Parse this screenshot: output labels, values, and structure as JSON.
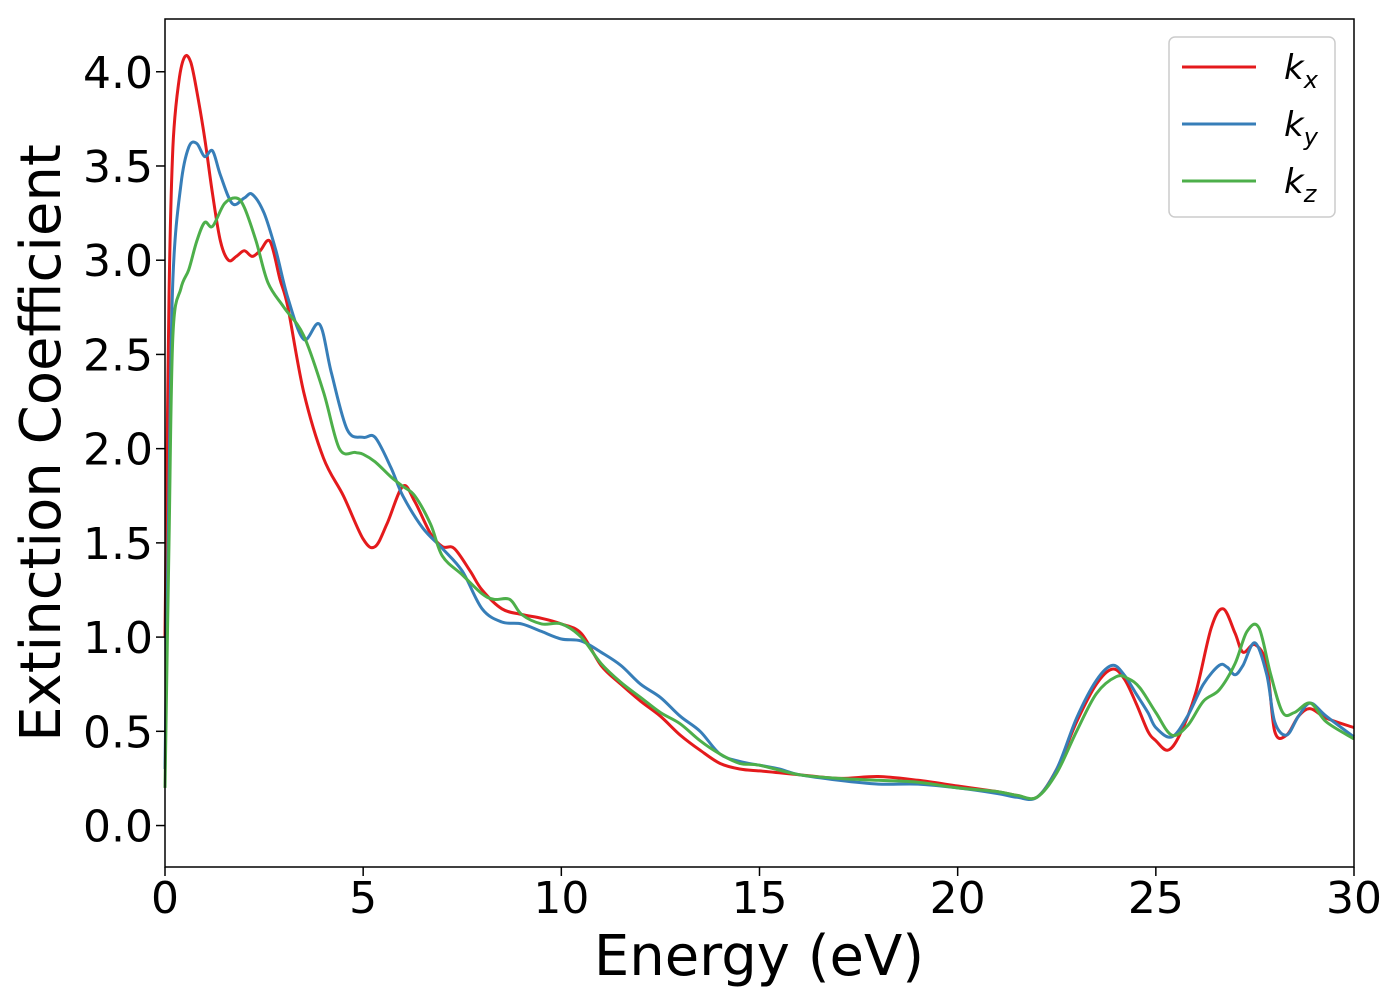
{
  "chart_data": {
    "type": "line",
    "title": "",
    "xlabel": "Energy (eV)",
    "ylabel": "Extinction Coefficient",
    "xlim": [
      0,
      30
    ],
    "ylim": [
      -0.22,
      4.28
    ],
    "xticks": [
      "0",
      "5",
      "10",
      "15",
      "20",
      "25",
      "30"
    ],
    "yticks": [
      "0.0",
      "0.5",
      "1.0",
      "1.5",
      "2.0",
      "2.5",
      "3.0",
      "3.5",
      "4.0"
    ],
    "xtick_values": [
      0,
      5,
      10,
      15,
      20,
      25,
      30
    ],
    "ytick_values": [
      0.0,
      0.5,
      1.0,
      1.5,
      2.0,
      2.5,
      3.0,
      3.5,
      4.0
    ],
    "grid": false,
    "legend_position": "top-right",
    "series": [
      {
        "name": "k",
        "subscript": "x",
        "color": "#e41a1c",
        "x": [
          0,
          0.1,
          0.2,
          0.35,
          0.5,
          0.65,
          0.8,
          1.0,
          1.2,
          1.4,
          1.6,
          1.8,
          2.0,
          2.2,
          2.4,
          2.65,
          2.9,
          3.1,
          3.5,
          4.0,
          4.5,
          5.0,
          5.3,
          5.6,
          6.0,
          6.3,
          6.7,
          7.0,
          7.3,
          7.7,
          8.0,
          8.5,
          9.0,
          9.5,
          10.0,
          10.5,
          11.0,
          11.5,
          12.0,
          12.5,
          13.0,
          13.5,
          14.0,
          14.5,
          15.0,
          15.5,
          16.0,
          17.0,
          18.0,
          19.0,
          20.0,
          21.0,
          21.5,
          22.0,
          22.5,
          23.0,
          23.5,
          23.9,
          24.2,
          24.5,
          24.8,
          25.0,
          25.3,
          25.6,
          26.0,
          26.4,
          26.7,
          27.0,
          27.2,
          27.5,
          27.8,
          28.0,
          28.3,
          28.6,
          28.9,
          29.3,
          30.0
        ],
        "y": [
          1.0,
          2.8,
          3.6,
          3.95,
          4.08,
          4.05,
          3.9,
          3.65,
          3.35,
          3.1,
          3.0,
          3.02,
          3.05,
          3.02,
          3.05,
          3.1,
          2.9,
          2.75,
          2.3,
          1.95,
          1.75,
          1.52,
          1.48,
          1.6,
          1.8,
          1.72,
          1.55,
          1.48,
          1.47,
          1.35,
          1.25,
          1.15,
          1.12,
          1.1,
          1.07,
          1.02,
          0.85,
          0.75,
          0.66,
          0.58,
          0.48,
          0.4,
          0.33,
          0.3,
          0.29,
          0.28,
          0.27,
          0.25,
          0.26,
          0.24,
          0.21,
          0.18,
          0.16,
          0.15,
          0.3,
          0.55,
          0.75,
          0.83,
          0.78,
          0.65,
          0.5,
          0.45,
          0.4,
          0.48,
          0.7,
          1.05,
          1.15,
          1.02,
          0.92,
          0.96,
          0.85,
          0.5,
          0.48,
          0.58,
          0.62,
          0.57,
          0.52
        ]
      },
      {
        "name": "k",
        "subscript": "y",
        "color": "#377eb8",
        "x": [
          0,
          0.1,
          0.2,
          0.4,
          0.6,
          0.8,
          1.0,
          1.2,
          1.4,
          1.7,
          2.0,
          2.2,
          2.5,
          2.8,
          3.1,
          3.5,
          3.9,
          4.2,
          4.6,
          5.0,
          5.3,
          5.7,
          6.0,
          6.5,
          7.0,
          7.5,
          8.0,
          8.5,
          9.0,
          9.5,
          10.0,
          10.5,
          11.0,
          11.5,
          12.0,
          12.5,
          13.0,
          13.5,
          14.0,
          14.5,
          15.0,
          15.5,
          16.0,
          17.0,
          18.0,
          19.0,
          20.0,
          21.0,
          21.5,
          22.0,
          22.5,
          23.0,
          23.5,
          23.9,
          24.2,
          24.5,
          24.8,
          25.0,
          25.4,
          25.8,
          26.2,
          26.6,
          26.8,
          27.0,
          27.2,
          27.5,
          27.8,
          28.0,
          28.3,
          28.6,
          28.9,
          29.3,
          30.0
        ],
        "y": [
          0.3,
          1.8,
          2.9,
          3.4,
          3.6,
          3.62,
          3.55,
          3.58,
          3.45,
          3.3,
          3.33,
          3.35,
          3.25,
          3.05,
          2.8,
          2.58,
          2.66,
          2.4,
          2.1,
          2.06,
          2.06,
          1.9,
          1.75,
          1.58,
          1.47,
          1.35,
          1.15,
          1.08,
          1.07,
          1.03,
          0.99,
          0.98,
          0.92,
          0.85,
          0.75,
          0.68,
          0.58,
          0.5,
          0.38,
          0.34,
          0.32,
          0.3,
          0.27,
          0.24,
          0.22,
          0.22,
          0.2,
          0.17,
          0.15,
          0.15,
          0.3,
          0.57,
          0.77,
          0.85,
          0.8,
          0.7,
          0.6,
          0.52,
          0.47,
          0.58,
          0.75,
          0.85,
          0.84,
          0.8,
          0.85,
          0.97,
          0.8,
          0.55,
          0.48,
          0.58,
          0.65,
          0.58,
          0.47
        ]
      },
      {
        "name": "k",
        "subscript": "z",
        "color": "#4daf4a",
        "x": [
          0,
          0.1,
          0.2,
          0.4,
          0.6,
          0.8,
          1.0,
          1.2,
          1.5,
          1.8,
          2.0,
          2.3,
          2.6,
          3.0,
          3.5,
          4.0,
          4.4,
          4.8,
          5.0,
          5.3,
          5.7,
          6.0,
          6.3,
          6.7,
          7.0,
          7.5,
          8.0,
          8.3,
          8.7,
          9.0,
          9.5,
          10.0,
          10.5,
          11.0,
          11.5,
          12.0,
          12.5,
          13.0,
          13.5,
          14.0,
          14.5,
          15.0,
          16.0,
          17.0,
          18.0,
          19.0,
          20.0,
          21.0,
          21.5,
          22.0,
          22.5,
          23.0,
          23.5,
          24.0,
          24.3,
          24.6,
          25.0,
          25.4,
          25.8,
          26.2,
          26.6,
          27.0,
          27.3,
          27.6,
          27.9,
          28.2,
          28.5,
          28.9,
          29.3,
          30.0
        ],
        "y": [
          0.2,
          1.5,
          2.6,
          2.85,
          2.95,
          3.1,
          3.2,
          3.18,
          3.3,
          3.33,
          3.28,
          3.1,
          2.88,
          2.75,
          2.6,
          2.3,
          2.0,
          1.98,
          1.97,
          1.93,
          1.85,
          1.8,
          1.75,
          1.6,
          1.43,
          1.33,
          1.23,
          1.2,
          1.2,
          1.12,
          1.07,
          1.07,
          1.0,
          0.86,
          0.76,
          0.68,
          0.6,
          0.54,
          0.45,
          0.38,
          0.33,
          0.32,
          0.27,
          0.25,
          0.24,
          0.23,
          0.2,
          0.18,
          0.16,
          0.15,
          0.28,
          0.5,
          0.7,
          0.79,
          0.78,
          0.73,
          0.6,
          0.48,
          0.53,
          0.66,
          0.72,
          0.86,
          1.03,
          1.05,
          0.8,
          0.6,
          0.6,
          0.65,
          0.55,
          0.46
        ]
      }
    ]
  }
}
